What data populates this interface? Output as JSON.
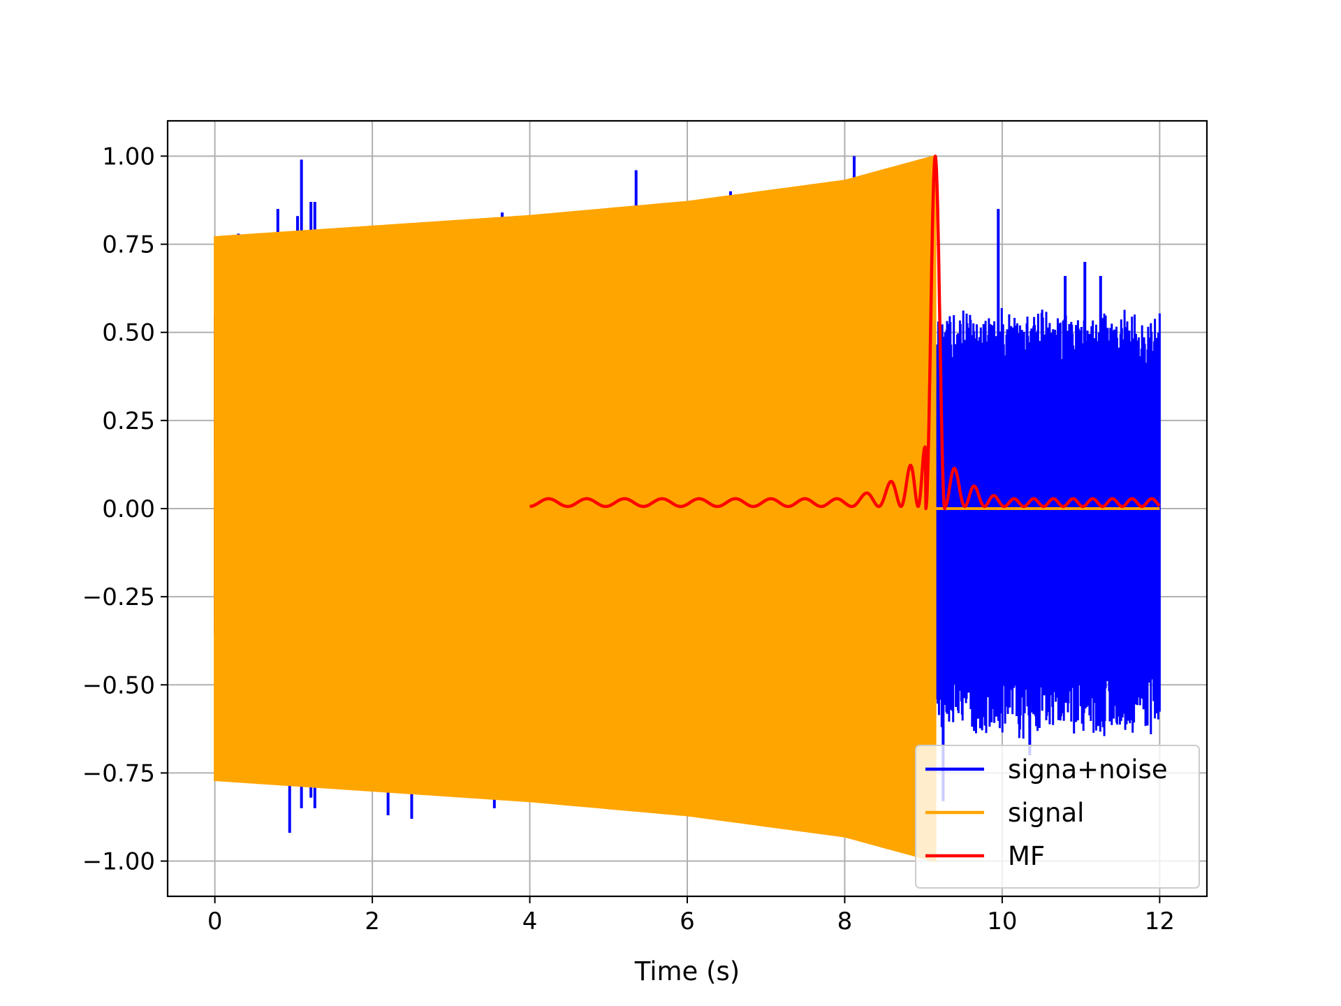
{
  "chart_data": {
    "type": "line",
    "title": "",
    "xlabel": "Time (s)",
    "ylabel": "",
    "xlim": [
      -0.6,
      12.6
    ],
    "ylim": [
      -1.1,
      1.1
    ],
    "xticks": [
      0,
      2,
      4,
      6,
      8,
      10,
      12
    ],
    "xtick_labels": [
      "0",
      "2",
      "4",
      "6",
      "8",
      "10",
      "12"
    ],
    "yticks": [
      -1.0,
      -0.75,
      -0.5,
      -0.25,
      0.0,
      0.25,
      0.5,
      0.75,
      1.0
    ],
    "ytick_labels": [
      "−1.00",
      "−0.75",
      "−0.50",
      "−0.25",
      "0.00",
      "0.25",
      "0.50",
      "0.75",
      "1.00"
    ],
    "grid": true,
    "legend_position": "lower right",
    "series": [
      {
        "name": "signa+noise",
        "color": "#0000ff",
        "kind": "dense-noise",
        "x_range": [
          0,
          12
        ],
        "upper_envelope": [
          [
            0,
            0.59
          ],
          [
            9.15,
            0.55
          ],
          [
            9.16,
            0.52
          ],
          [
            12,
            0.52
          ]
        ],
        "lower_envelope": [
          [
            0,
            -0.33
          ],
          [
            9.15,
            -0.55
          ],
          [
            9.16,
            -0.6
          ],
          [
            12,
            -0.6
          ]
        ],
        "spikes": [
          [
            0.3,
            0.78
          ],
          [
            0.8,
            0.85
          ],
          [
            0.95,
            -0.92
          ],
          [
            1.05,
            0.83
          ],
          [
            1.1,
            0.99
          ],
          [
            1.22,
            0.87
          ],
          [
            1.27,
            0.87
          ],
          [
            1.1,
            -0.85
          ],
          [
            1.22,
            -0.82
          ],
          [
            1.27,
            -0.85
          ],
          [
            2.2,
            -0.87
          ],
          [
            2.5,
            -0.88
          ],
          [
            3.55,
            -0.85
          ],
          [
            3.65,
            0.84
          ],
          [
            5.35,
            0.96
          ],
          [
            6.55,
            0.9
          ],
          [
            8.12,
            1.0
          ],
          [
            9.25,
            -0.83
          ],
          [
            9.95,
            0.85
          ],
          [
            10.8,
            0.66
          ],
          [
            11.05,
            0.7
          ],
          [
            11.25,
            0.66
          ],
          [
            10.35,
            -0.7
          ]
        ]
      },
      {
        "name": "signal",
        "color": "#ffa500",
        "kind": "chirp",
        "x_range": [
          0,
          12
        ],
        "envelope": [
          [
            0,
            0.77
          ],
          [
            2,
            0.8
          ],
          [
            4,
            0.83
          ],
          [
            6,
            0.87
          ],
          [
            8,
            0.93
          ],
          [
            9.15,
            1.0
          ]
        ],
        "end_time": 9.15
      },
      {
        "name": "MF",
        "color": "#ff0000",
        "kind": "matched-filter",
        "x_range": [
          4,
          12
        ],
        "peak_time": 9.15,
        "peak_value": 1.0
      }
    ]
  }
}
